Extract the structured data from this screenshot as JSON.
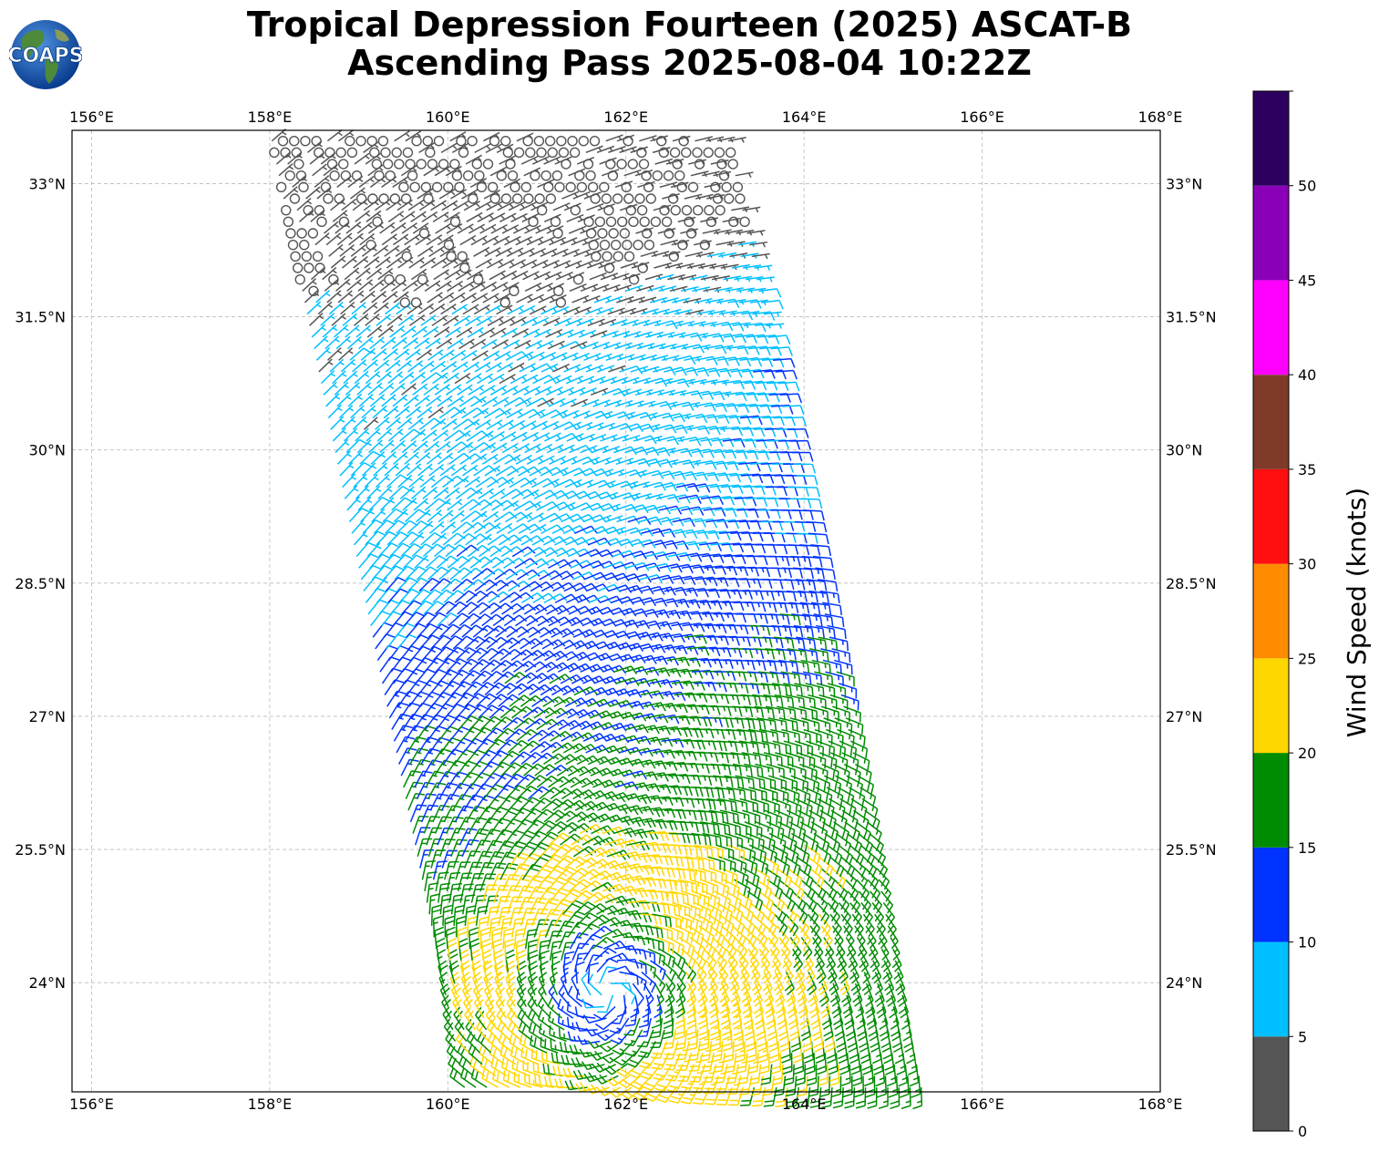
{
  "header": {
    "title_line1": "Tropical Depression Fourteen (2025) ASCAT-B",
    "title_line2": "Ascending Pass 2025-08-04 10:22Z"
  },
  "logo": {
    "text": "COAPS",
    "icon": "globe-icon"
  },
  "map": {
    "lon_ticks": [
      "156°E",
      "158°E",
      "160°E",
      "162°E",
      "164°E",
      "166°E",
      "168°E"
    ],
    "lon_values": [
      156,
      158,
      160,
      162,
      164,
      166,
      168
    ],
    "lat_ticks": [
      "33°N",
      "31.5°N",
      "30°N",
      "28.5°N",
      "27°N",
      "25.5°N",
      "24°N"
    ],
    "lat_values": [
      33,
      31.5,
      30,
      28.5,
      27,
      25.5,
      24
    ],
    "lon_range": [
      155.78,
      168.0
    ],
    "lat_range": [
      22.77,
      33.6
    ],
    "wind_field": {
      "center": {
        "lon": 161.8,
        "lat": 23.9
      },
      "swath_lon_west_at_south": 160.2,
      "swath_lon_west_at_north": 158.0,
      "swath_width_deg": 5.2,
      "north_edge_lat": 33.6
    }
  },
  "colorbar": {
    "label": "Wind Speed (knots)",
    "ticks": [
      "0",
      "5",
      "10",
      "15",
      "20",
      "25",
      "30",
      "35",
      "40",
      "45",
      "50"
    ],
    "bins": [
      {
        "min": 0,
        "max": 5,
        "color": "#555555"
      },
      {
        "min": 5,
        "max": 10,
        "color": "#00bfff"
      },
      {
        "min": 10,
        "max": 15,
        "color": "#0033ff"
      },
      {
        "min": 15,
        "max": 20,
        "color": "#008c00"
      },
      {
        "min": 20,
        "max": 25,
        "color": "#ffd700"
      },
      {
        "min": 25,
        "max": 30,
        "color": "#ff8c00"
      },
      {
        "min": 30,
        "max": 35,
        "color": "#ff0f0f"
      },
      {
        "min": 35,
        "max": 40,
        "color": "#803a2a"
      },
      {
        "min": 40,
        "max": 45,
        "color": "#ff00ff"
      },
      {
        "min": 45,
        "max": 50,
        "color": "#8a00b8"
      },
      {
        "min": 50,
        "max": 55,
        "color": "#2d0060"
      }
    ]
  }
}
